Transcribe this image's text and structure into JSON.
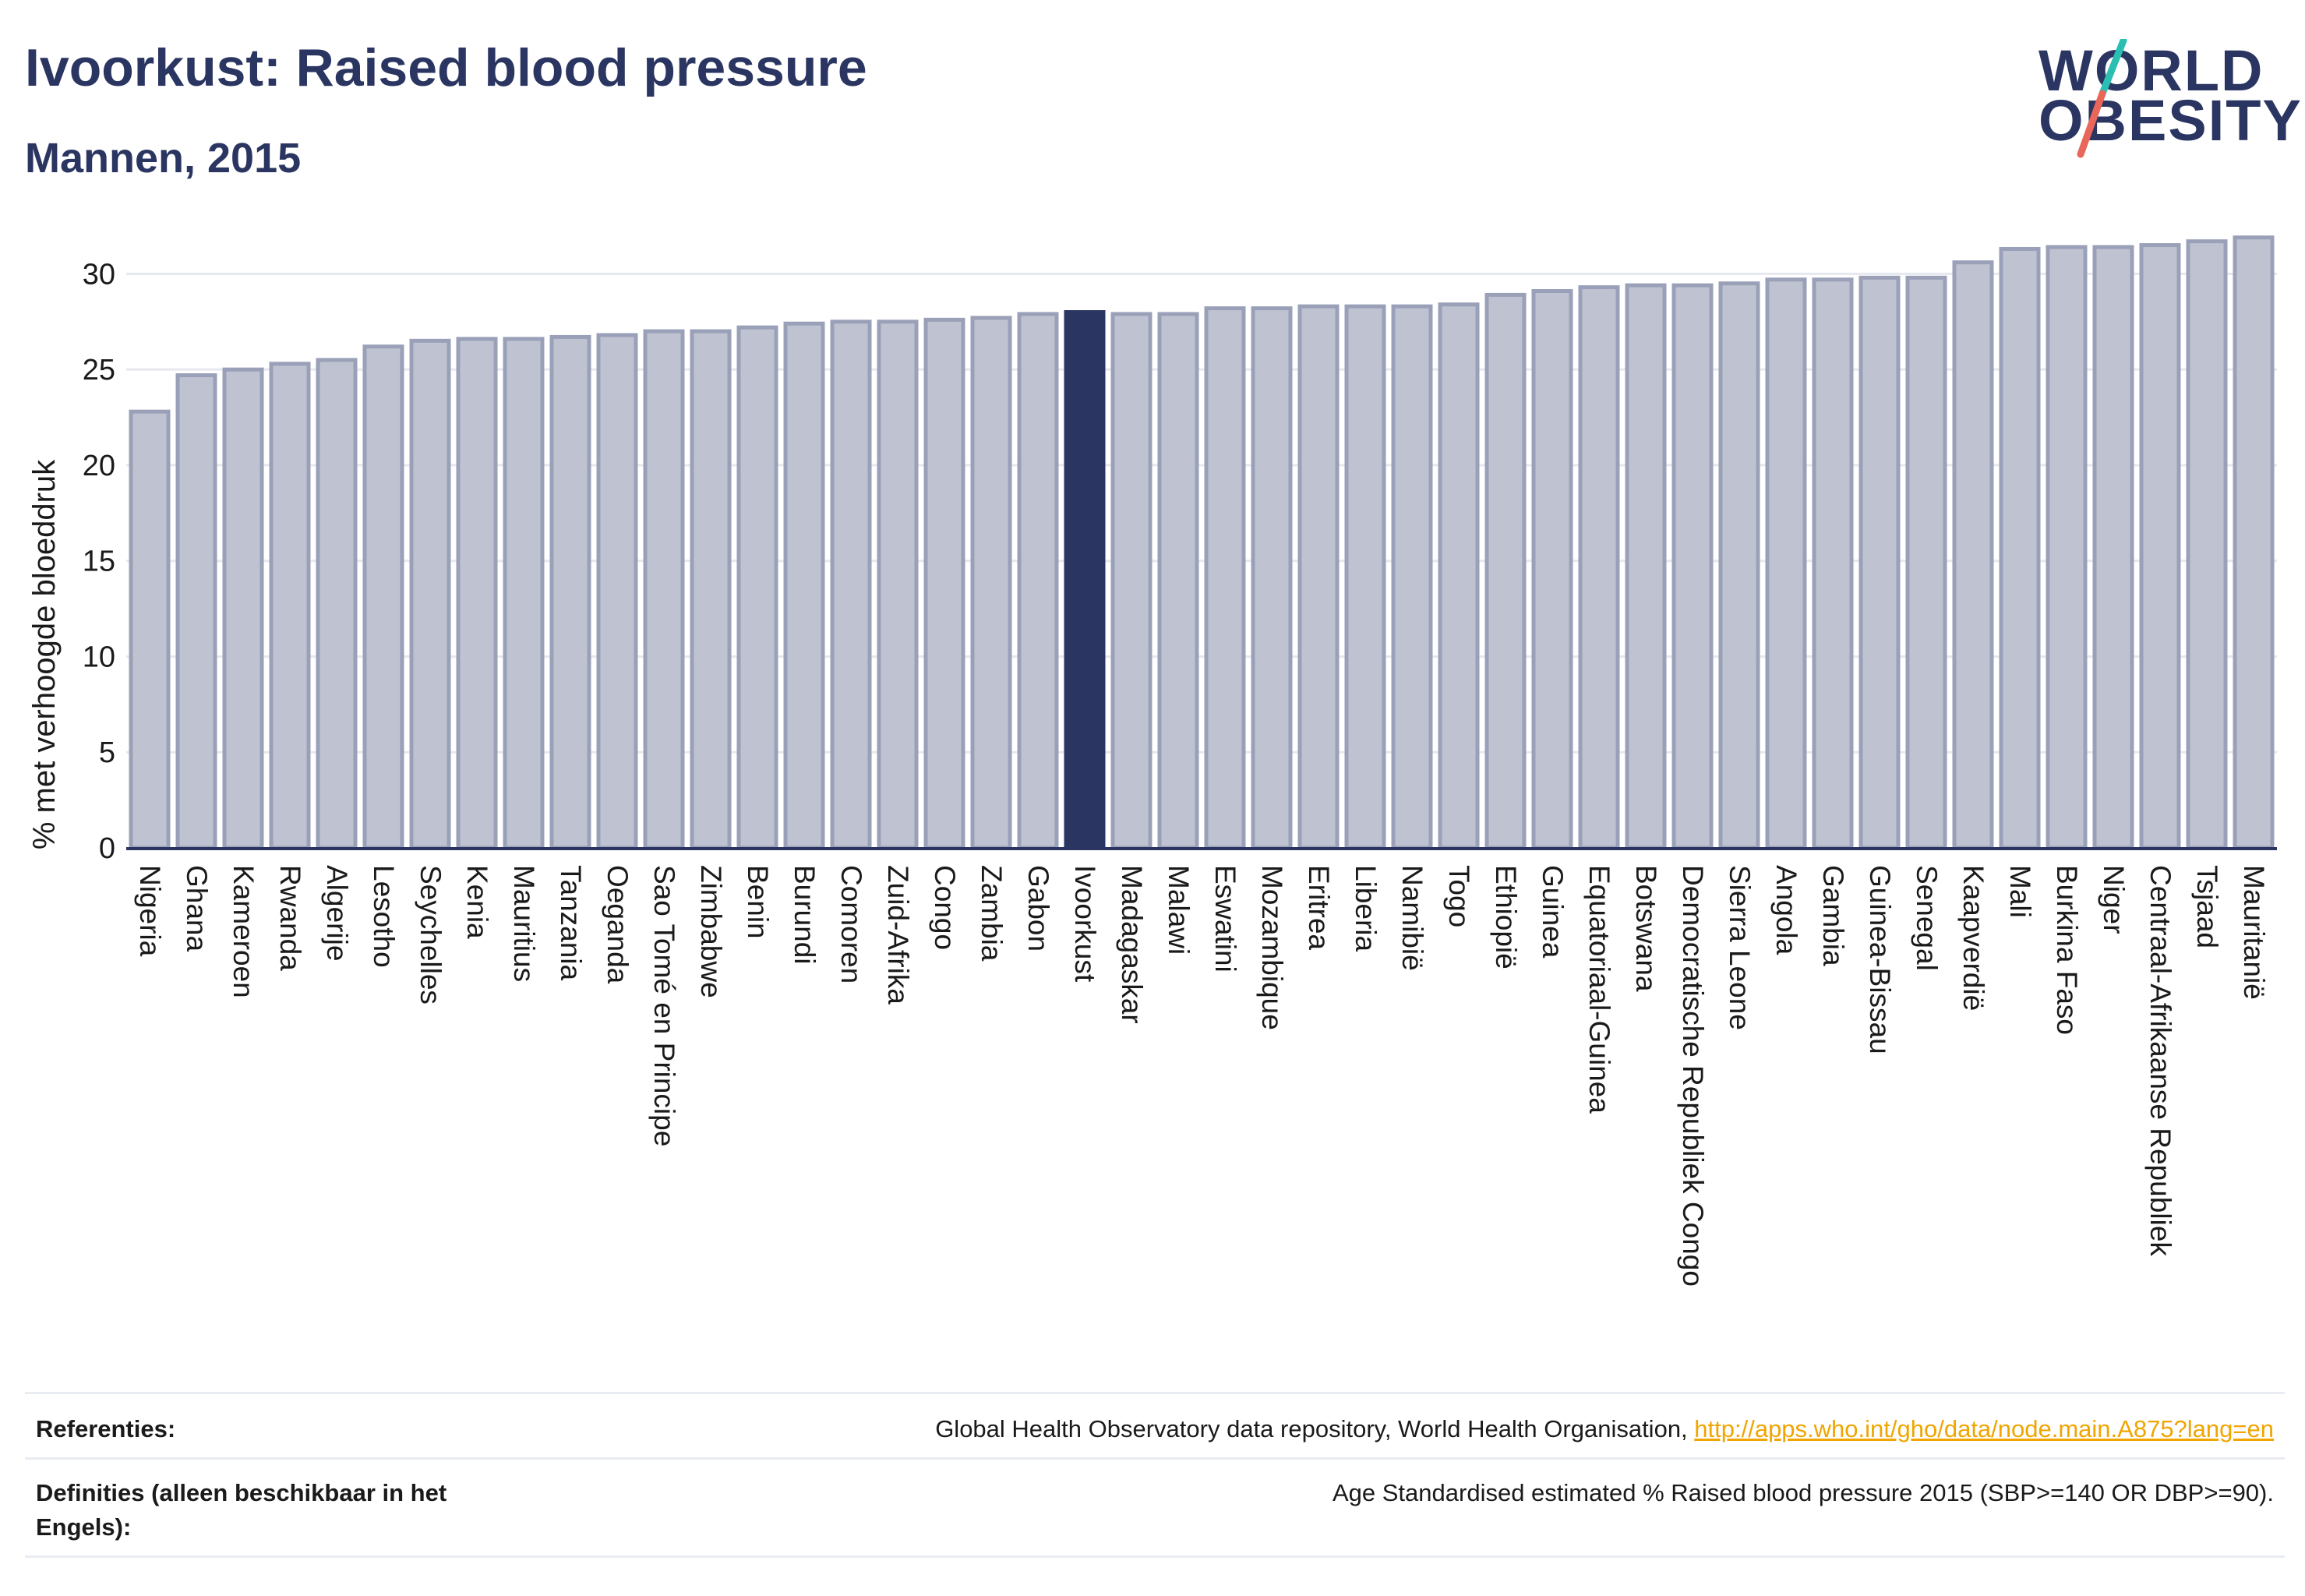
{
  "header": {
    "title": "Ivoorkust: Raised blood pressure",
    "subtitle": "Mannen, 2015"
  },
  "logo": {
    "line1": "WORLD",
    "line2": "OBESITY"
  },
  "chart_data": {
    "type": "bar",
    "title": "Ivoorkust: Raised blood pressure",
    "subtitle": "Mannen, 2015",
    "ylabel": "% met verhoogde bloeddruk",
    "xlabel": "",
    "ylim": [
      0,
      32.5
    ],
    "yticks": [
      0,
      5,
      10,
      15,
      20,
      25,
      30
    ],
    "grid": true,
    "highlight": "Ivoorkust",
    "colors": {
      "bar": "#bfc3d1",
      "bar_edge": "#9aa0b8",
      "highlight": "#2a3561",
      "grid": "#e6e8ef"
    },
    "categories": [
      "Nigeria",
      "Ghana",
      "Kameroen",
      "Rwanda",
      "Algerije",
      "Lesotho",
      "Seychelles",
      "Kenia",
      "Mauritius",
      "Tanzania",
      "Oeganda",
      "Sao Tomé en Principe",
      "Zimbabwe",
      "Benin",
      "Burundi",
      "Comoren",
      "Zuid-Afrika",
      "Congo",
      "Zambia",
      "Gabon",
      "Ivoorkust",
      "Madagaskar",
      "Malawi",
      "Eswatini",
      "Mozambique",
      "Eritrea",
      "Liberia",
      "Namibië",
      "Togo",
      "Ethiopië",
      "Guinea",
      "Equatoriaal-Guinea",
      "Botswana",
      "Democratische Republiek Congo",
      "Sierra Leone",
      "Angola",
      "Gambia",
      "Guinea-Bissau",
      "Senegal",
      "Kaapverdië",
      "Mali",
      "Burkina Faso",
      "Niger",
      "Centraal-Afrikaanse Republiek",
      "Tsjaad",
      "Mauritanië"
    ],
    "values": [
      22.8,
      24.7,
      25.0,
      25.3,
      25.5,
      26.2,
      26.5,
      26.6,
      26.6,
      26.7,
      26.8,
      27.0,
      27.0,
      27.2,
      27.4,
      27.5,
      27.5,
      27.6,
      27.7,
      27.9,
      28.0,
      27.9,
      27.9,
      28.2,
      28.2,
      28.3,
      28.3,
      28.3,
      28.4,
      28.9,
      29.1,
      29.3,
      29.4,
      29.4,
      29.5,
      29.7,
      29.7,
      29.8,
      29.8,
      30.6,
      31.3,
      31.4,
      31.4,
      31.5,
      31.7,
      31.9
    ]
  },
  "footer": {
    "references_label": "Referenties:",
    "references_text": "Global Health Observatory data repository, World Health Organisation, ",
    "references_link": "http://apps.who.int/gho/data/node.main.A875?lang=en",
    "definitions_label": "Definities (alleen beschikbaar in het Engels):",
    "definitions_text": "Age Standardised estimated % Raised blood pressure 2015 (SBP>=140 OR DBP>=90)."
  }
}
